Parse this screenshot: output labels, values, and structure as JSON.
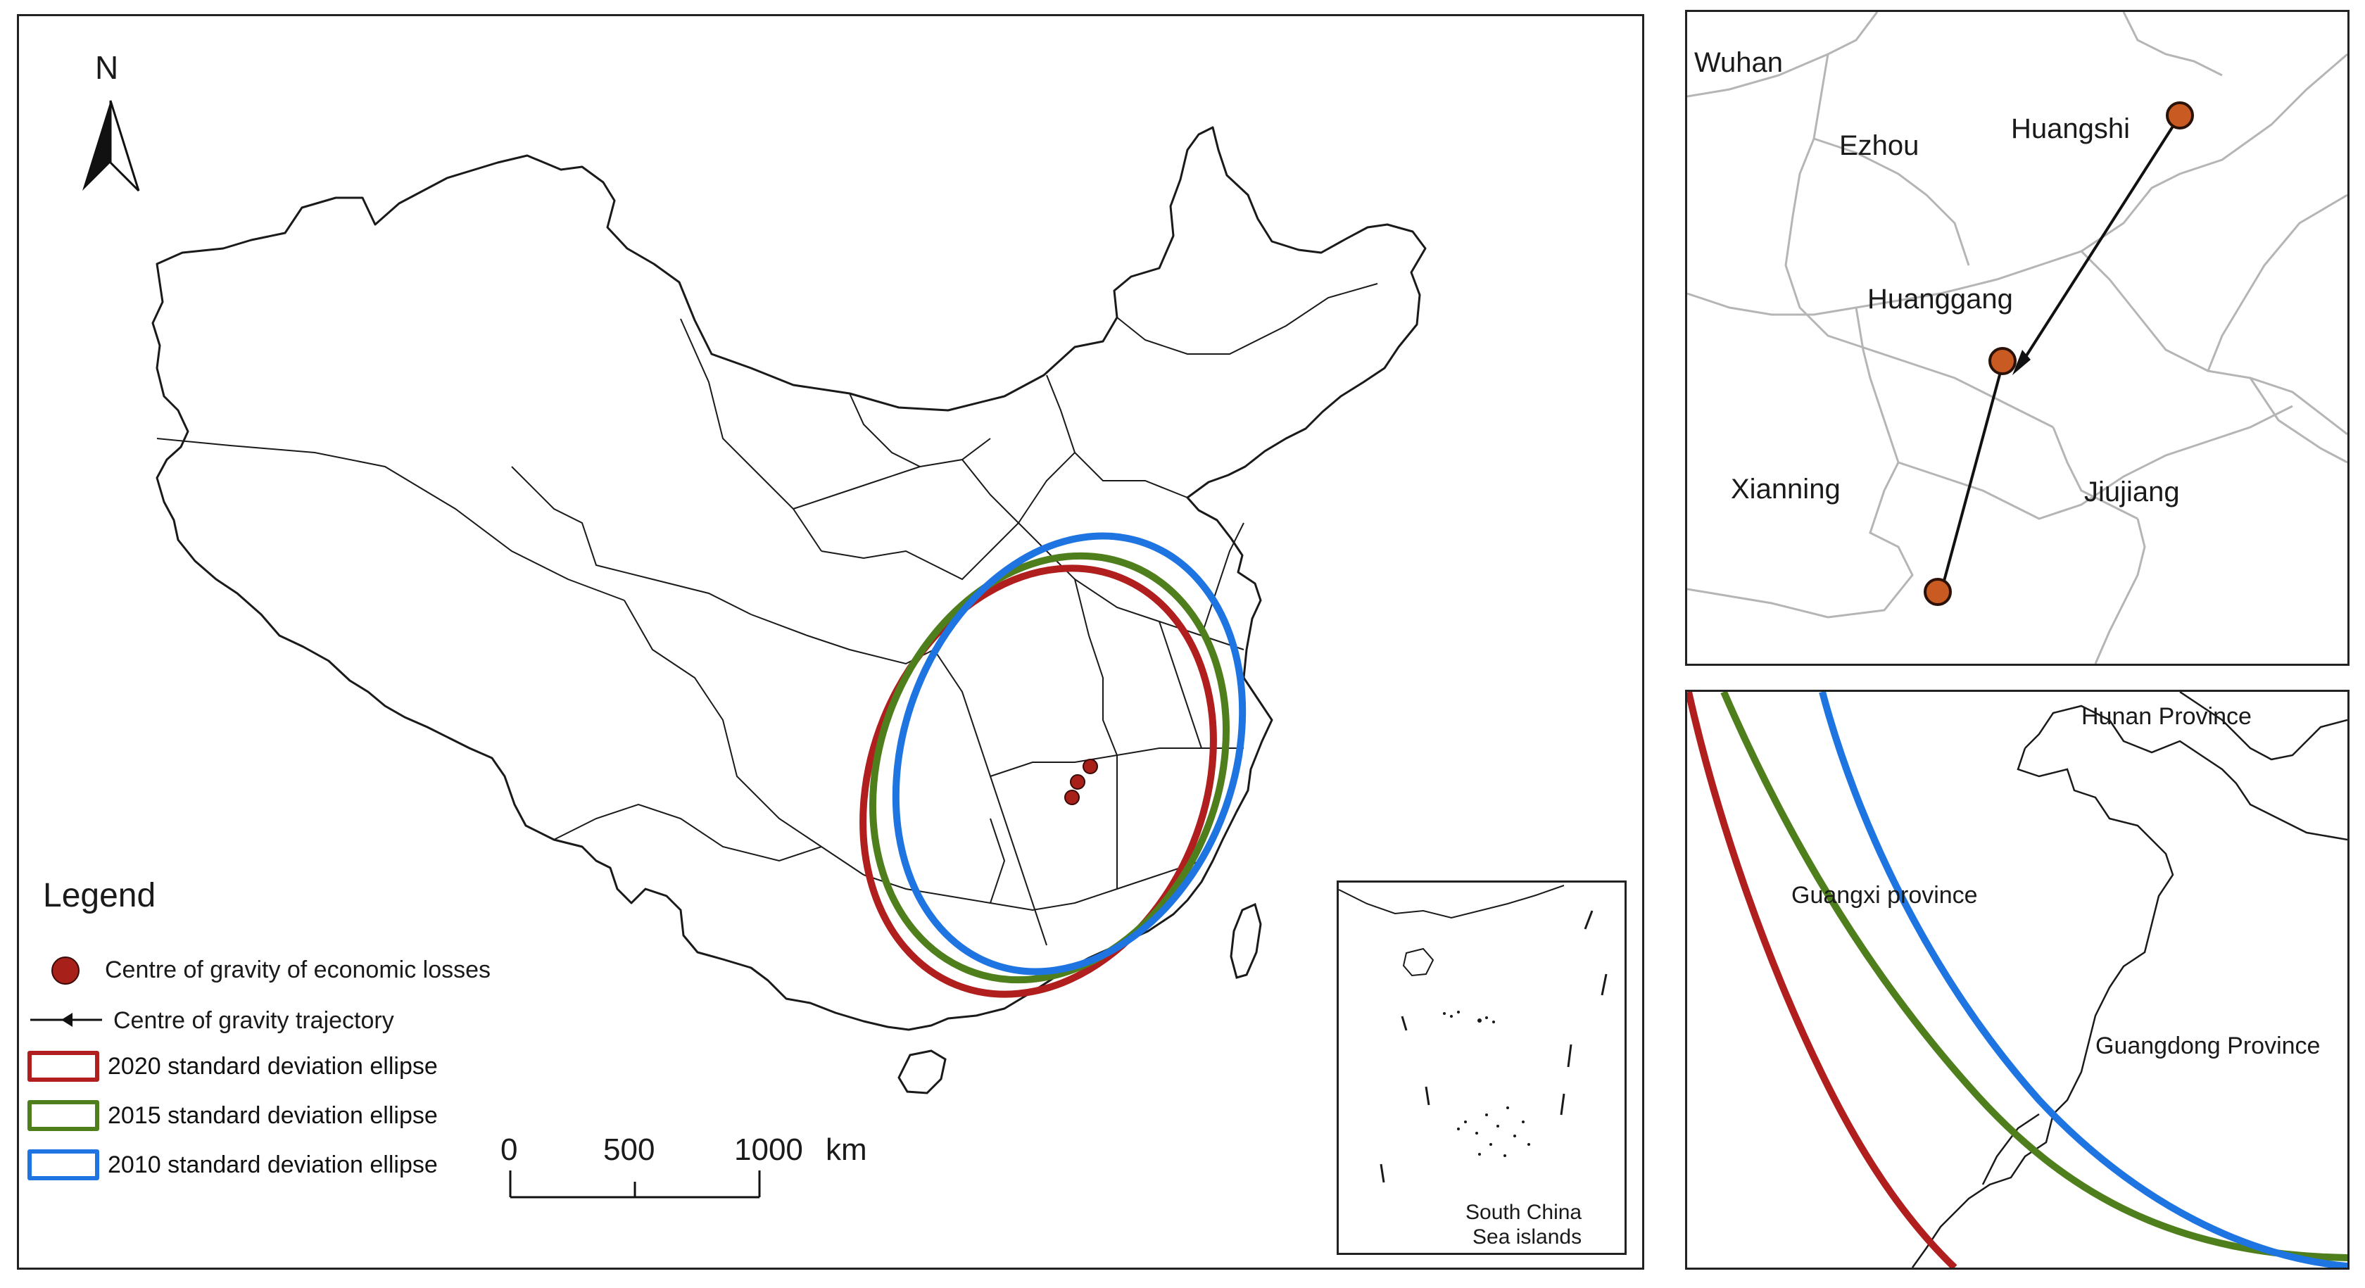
{
  "main_map": {
    "north_arrow_label": "N",
    "legend": {
      "title": "Legend",
      "items": [
        {
          "label": "Centre of gravity of economic losses",
          "symbol": "circle",
          "color": "#a8201a"
        },
        {
          "label": "Centre of gravity trajectory",
          "symbol": "arrow",
          "color": "#111111"
        },
        {
          "label": "2020 standard deviation ellipse",
          "symbol": "box",
          "color": "#b01e1e"
        },
        {
          "label": "2015 standard deviation ellipse",
          "symbol": "box",
          "color": "#4f7f1d"
        },
        {
          "label": "2010 standard deviation ellipse",
          "symbol": "box",
          "color": "#1e74e0"
        }
      ]
    },
    "scale_bar": {
      "ticks": [
        "0",
        "500",
        "1000"
      ],
      "unit": "km"
    },
    "inset_label": "South China\nSea islands"
  },
  "trajectory_inset": {
    "places": [
      "Wuhan",
      "Ezhou",
      "Huangshi",
      "Huanggang",
      "Xianning",
      "Jiujiang"
    ]
  },
  "ellipse_inset": {
    "places": [
      "Hunan Province",
      "Guangxi province",
      "Guangdong Province"
    ]
  },
  "colors": {
    "ellipse_2020": "#b01e1e",
    "ellipse_2015": "#4f7f1d",
    "ellipse_2010": "#1e74e0",
    "centre_point": "#c85a22",
    "centre_point_main": "#a8201a",
    "boundary": "#1a1a1a",
    "inset_boundary": "#b5b5b5"
  }
}
